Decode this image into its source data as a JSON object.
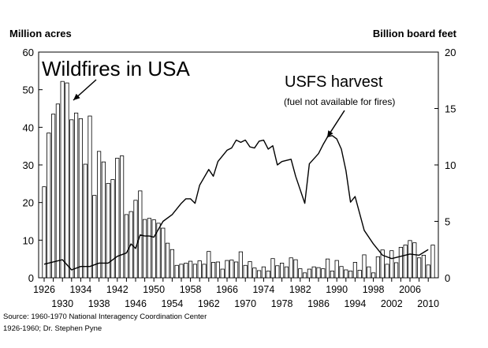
{
  "chart_data": {
    "type": "bar",
    "left_axis_label": "Million acres",
    "right_axis_label": "Billion board feet",
    "y_left_ticks": [
      0,
      10,
      20,
      30,
      40,
      50,
      60
    ],
    "y_right_ticks": [
      0,
      5,
      10,
      15,
      20
    ],
    "ylim_left": [
      0,
      60
    ],
    "ylim_right": [
      0,
      20
    ],
    "xlim": [
      1926,
      2011
    ],
    "x_ticks_upper": [
      1926,
      1934,
      1942,
      1950,
      1958,
      1966,
      1974,
      1982,
      1990,
      1998,
      2006
    ],
    "x_ticks_lower": [
      1930,
      1938,
      1946,
      1954,
      1962,
      1970,
      1978,
      1986,
      1994,
      2002,
      2010
    ],
    "grid": false,
    "annotations": [
      {
        "text": "Wildfires in USA"
      },
      {
        "text": "USFS harvest"
      },
      {
        "text": "(fuel not available for fires)"
      }
    ],
    "series": [
      {
        "name": "Wildfires in USA",
        "axis": "left",
        "kind": "bar",
        "x": [
          1926,
          1927,
          1928,
          1929,
          1930,
          1931,
          1932,
          1933,
          1934,
          1935,
          1936,
          1937,
          1938,
          1939,
          1940,
          1941,
          1942,
          1943,
          1944,
          1945,
          1946,
          1947,
          1948,
          1949,
          1950,
          1951,
          1952,
          1953,
          1954,
          1955,
          1956,
          1957,
          1958,
          1959,
          1960,
          1961,
          1962,
          1963,
          1964,
          1965,
          1966,
          1967,
          1968,
          1969,
          1970,
          1971,
          1972,
          1973,
          1974,
          1975,
          1976,
          1977,
          1978,
          1979,
          1980,
          1981,
          1982,
          1983,
          1984,
          1985,
          1986,
          1987,
          1988,
          1989,
          1990,
          1991,
          1992,
          1993,
          1994,
          1995,
          1996,
          1997,
          1998,
          1999,
          2000,
          2001,
          2002,
          2003,
          2004,
          2005,
          2006,
          2007,
          2008,
          2009,
          2010,
          2011
        ],
        "values": [
          24.2,
          38.5,
          43.5,
          46.2,
          52.2,
          51.8,
          42.0,
          43.8,
          42.3,
          30.2,
          43.0,
          21.9,
          33.6,
          30.8,
          25.1,
          26.1,
          31.8,
          32.4,
          16.8,
          17.6,
          20.6,
          23.1,
          15.5,
          15.8,
          15.4,
          14.5,
          13.2,
          9.2,
          7.5,
          3.3,
          3.6,
          3.9,
          4.4,
          3.6,
          4.5,
          3.6,
          7.0,
          4.1,
          4.2,
          2.3,
          4.6,
          4.7,
          4.2,
          6.9,
          3.3,
          4.3,
          2.6,
          1.9,
          2.9,
          1.8,
          5.1,
          3.2,
          3.9,
          2.9,
          5.3,
          4.8,
          2.4,
          1.3,
          2.3,
          2.9,
          2.7,
          2.4,
          5.0,
          1.8,
          4.6,
          3.0,
          2.1,
          1.8,
          4.1,
          2.0,
          6.1,
          2.9,
          1.3,
          5.6,
          7.4,
          3.6,
          7.2,
          4.0,
          8.1,
          8.7,
          9.9,
          9.3,
          5.3,
          6.0,
          3.4,
          8.7
        ]
      },
      {
        "name": "USFS harvest",
        "axis": "right",
        "kind": "line",
        "x": [
          1926,
          1928,
          1930,
          1932,
          1934,
          1936,
          1938,
          1940,
          1942,
          1944,
          1945,
          1946,
          1947,
          1948,
          1949,
          1950,
          1951,
          1952,
          1954,
          1956,
          1957,
          1958,
          1959,
          1960,
          1962,
          1963,
          1964,
          1966,
          1967,
          1968,
          1969,
          1970,
          1971,
          1972,
          1973,
          1974,
          1975,
          1976,
          1977,
          1978,
          1980,
          1981,
          1982,
          1983,
          1984,
          1986,
          1987,
          1988,
          1989,
          1990,
          1991,
          1992,
          1993,
          1994,
          1996,
          1998,
          2000,
          2002,
          2004,
          2006,
          2008,
          2010
        ],
        "values": [
          1.2,
          1.4,
          1.6,
          0.7,
          1.0,
          1.0,
          1.3,
          1.3,
          1.9,
          2.2,
          3.0,
          2.6,
          3.8,
          3.7,
          3.7,
          3.6,
          4.3,
          5.0,
          5.6,
          6.6,
          7.0,
          7.0,
          6.6,
          8.2,
          9.6,
          9.0,
          10.3,
          11.3,
          11.5,
          12.2,
          12.0,
          12.2,
          11.6,
          11.5,
          12.1,
          12.2,
          11.4,
          11.7,
          10.0,
          10.3,
          10.5,
          9.0,
          7.8,
          6.6,
          10.1,
          11.0,
          11.8,
          12.5,
          12.6,
          12.3,
          11.4,
          9.5,
          6.7,
          7.2,
          4.2,
          3.0,
          2.0,
          1.7,
          1.9,
          2.1,
          2.0,
          2.5
        ]
      }
    ]
  },
  "source": {
    "line1": "Source: 1960-1970 National Interagency Coordination Center",
    "line2": "1926-1960; Dr. Stephen Pyne"
  }
}
